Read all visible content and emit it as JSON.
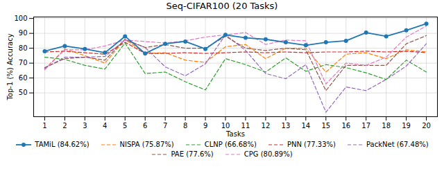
{
  "chart_data": {
    "type": "line",
    "title": "Seq-CIFAR100 (20 Tasks)",
    "x_label": "Tasks",
    "y_label": "Top-1 (%) Accuracy",
    "x": [
      1,
      2,
      3,
      4,
      5,
      6,
      7,
      8,
      9,
      10,
      11,
      12,
      13,
      14,
      15,
      16,
      17,
      18,
      19,
      20
    ],
    "xlim": [
      0.45,
      20.55
    ],
    "xticks": [
      1,
      2,
      3,
      4,
      5,
      6,
      7,
      8,
      9,
      10,
      11,
      12,
      13,
      14,
      15,
      16,
      17,
      18,
      19,
      20
    ],
    "ylim": [
      34,
      101
    ],
    "yticks": [
      50,
      60,
      70,
      80,
      90,
      100
    ],
    "grid": true,
    "legend": "bottom",
    "series": [
      {
        "name": "TAMiL (84.62%)",
        "color": "#1f77b4",
        "line_style": "solid",
        "marker": "circle",
        "values": [
          78,
          81.5,
          79.5,
          77,
          88,
          76.5,
          83,
          84.5,
          79.5,
          89,
          87,
          86,
          84,
          82,
          84,
          85,
          90.5,
          88,
          92,
          96.5
        ]
      },
      {
        "name": "NISPA (75.87%)",
        "color": "#ff7f0e",
        "line_style": "dashed",
        "marker": "none",
        "values": [
          66,
          79.5,
          75,
          70,
          86,
          76.5,
          77,
          72,
          70.5,
          81,
          82.5,
          73,
          80,
          80,
          64,
          76,
          77,
          73,
          79,
          77.5
        ]
      },
      {
        "name": "CLNP (66.68%)",
        "color": "#2ca02c",
        "line_style": "dashed",
        "marker": "none",
        "values": [
          74,
          72.5,
          68.5,
          66,
          83.5,
          63,
          64,
          57.5,
          52,
          73,
          69,
          64,
          73.5,
          64.5,
          69,
          67,
          63.5,
          59,
          72,
          64
        ]
      },
      {
        "name": "PNN (77.33%)",
        "color": "#d62728",
        "line_style": "dashed",
        "marker": "none",
        "values": [
          77.5,
          78,
          77,
          76,
          84,
          76.5,
          76.5,
          77,
          76.5,
          77,
          77.5,
          77,
          77.5,
          77,
          77.5,
          77.5,
          78,
          77.5,
          78,
          77
        ]
      },
      {
        "name": "PackNet (67.48%)",
        "color": "#9467bd",
        "line_style": "dashed",
        "marker": "none",
        "values": [
          66.5,
          74,
          74,
          74.5,
          85.5,
          80.5,
          67.5,
          61.5,
          69.5,
          89,
          78.5,
          63,
          59.5,
          69,
          37,
          54,
          51.5,
          59,
          68,
          83
        ]
      },
      {
        "name": "PAE (77.6%)",
        "color": "#8c564b",
        "line_style": "dashed",
        "marker": "none",
        "values": [
          67,
          73,
          74,
          72,
          86,
          80.5,
          82.5,
          80,
          80,
          88,
          80,
          78.5,
          80,
          79,
          51.5,
          68.5,
          68.5,
          68.5,
          83,
          88.5
        ]
      },
      {
        "name": "CPG (80.89%)",
        "color": "#e377c2",
        "line_style": "dashed",
        "marker": "none",
        "values": [
          65.5,
          79,
          79,
          81.5,
          85.5,
          84.5,
          83.5,
          85,
          87.5,
          89,
          90.5,
          82.5,
          85.5,
          85,
          56,
          70,
          68.5,
          74,
          87.5,
          95
        ]
      }
    ]
  }
}
